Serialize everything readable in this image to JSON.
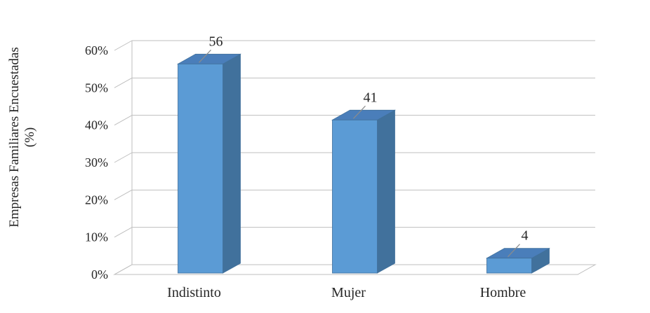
{
  "chart_data": {
    "type": "bar",
    "style": "3d-clustered-column",
    "title": "",
    "categories": [
      "Indistinto",
      "Mujer",
      "Hombre"
    ],
    "values": [
      56,
      41,
      4
    ],
    "data_labels": [
      "56",
      "41",
      "4"
    ],
    "xlabel": "",
    "ylabel": "Empresas Familiares Encuestadas (%)",
    "ylabel_lines": [
      "Empresas Familiares Encuestadas",
      "(%)"
    ],
    "ylim": [
      0,
      60
    ],
    "tick_step": 10,
    "y_ticks": [
      {
        "value": 0,
        "label": "0%"
      },
      {
        "value": 10,
        "label": "10%"
      },
      {
        "value": 20,
        "label": "20%"
      },
      {
        "value": 30,
        "label": "30%"
      },
      {
        "value": 40,
        "label": "40%"
      },
      {
        "value": 50,
        "label": "50%"
      },
      {
        "value": 60,
        "label": "60%"
      }
    ],
    "grid": true,
    "legend": "none",
    "colors": {
      "bar_front": "#5B9BD5",
      "bar_top": "#4A7EBA",
      "bar_side": "#41719C",
      "bar_edge": "#41719C",
      "grid": "#BFBFBF",
      "text": "#262626",
      "leader": "#8C8C8C",
      "background": "#FFFFFF"
    }
  }
}
